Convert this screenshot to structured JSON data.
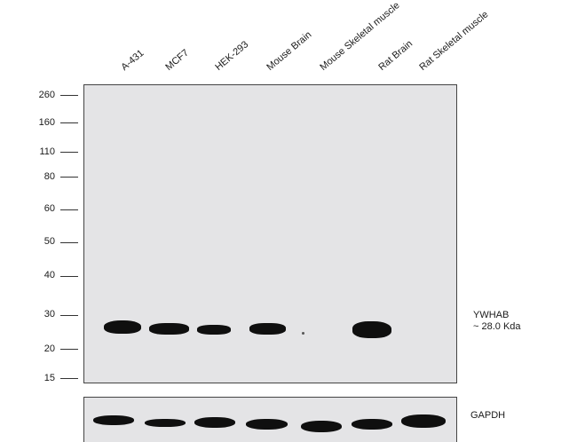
{
  "lanes": [
    "A-431",
    "MCF7",
    "HEK-293",
    "Mouse Brain",
    "Mouse Skeletal muscle",
    "Rat Brain",
    "Rat Skeletal muscle"
  ],
  "mw_markers": [
    "260",
    "160",
    "110",
    "80",
    "60",
    "50",
    "40",
    "30",
    "20",
    "15"
  ],
  "target": {
    "name": "YWHAB",
    "size": "~ 28.0 Kda"
  },
  "loading_control": "GAPDH",
  "colors": {
    "membrane": "#e4e4e6",
    "band": "#0f0f0f"
  }
}
